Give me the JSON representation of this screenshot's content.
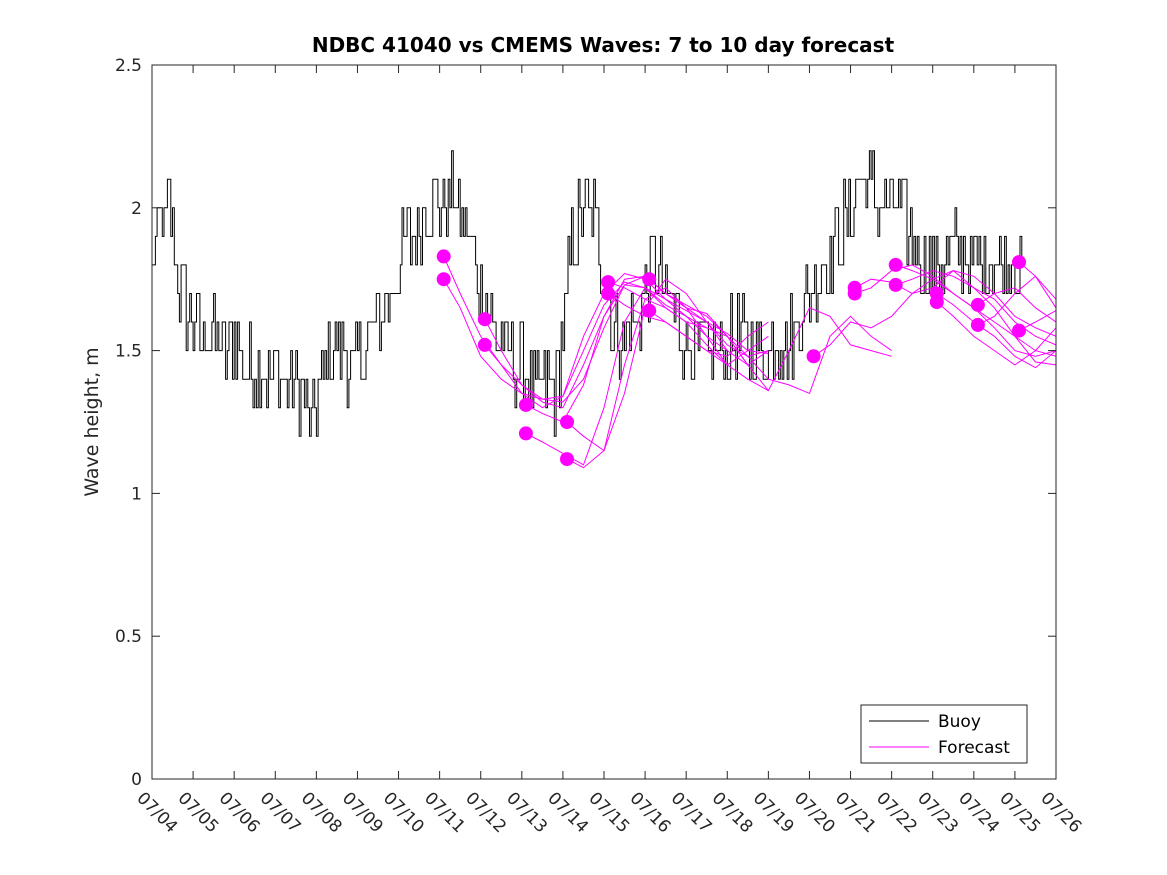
{
  "chart_data": {
    "type": "line",
    "title": "NDBC 41040 vs CMEMS Waves: 7 to 10 day forecast",
    "xlabel": "",
    "ylabel": "Wave height, m",
    "xlim": [
      "07/04",
      "07/26"
    ],
    "ylim": [
      0,
      2.5
    ],
    "x_ticks": [
      "07/04",
      "07/05",
      "07/06",
      "07/07",
      "07/08",
      "07/09",
      "07/10",
      "07/11",
      "07/12",
      "07/13",
      "07/14",
      "07/15",
      "07/16",
      "07/17",
      "07/18",
      "07/19",
      "07/20",
      "07/21",
      "07/22",
      "07/23",
      "07/24",
      "07/25",
      "07/26"
    ],
    "y_ticks": [
      "0",
      "0.5",
      "1",
      "1.5",
      "2",
      "2.5"
    ],
    "y_tick_values": [
      0,
      0.5,
      1,
      1.5,
      2,
      2.5
    ],
    "grid": false,
    "legend_position": "bottom-right",
    "colors": {
      "buoy": "#000000",
      "forecast": "#ff00ff"
    },
    "series": [
      {
        "name": "Buoy",
        "x_days": [
          0,
          0.05,
          0.1,
          0.2,
          0.3,
          0.4,
          0.5,
          0.6,
          0.8,
          1.0,
          1.2,
          1.5,
          1.8,
          2.0,
          2.2,
          2.5,
          2.8,
          3.0,
          3.2,
          3.5,
          3.7,
          3.8,
          3.9,
          4.0,
          4.2,
          4.5,
          4.8,
          5.0,
          5.3,
          5.5,
          5.8,
          6.0,
          6.3,
          6.5,
          6.8,
          7.0,
          7.3,
          7.6,
          7.8,
          8.0,
          8.3,
          8.6,
          8.9,
          9.1,
          9.3,
          9.6,
          9.8,
          10.0,
          10.2,
          10.5,
          10.8,
          11.0,
          11.2,
          11.5,
          11.8,
          12.0,
          12.3,
          12.5,
          12.8,
          13.0,
          13.3,
          13.6,
          14.0,
          14.3,
          14.6,
          15.0,
          15.3,
          15.6,
          16.0,
          16.3,
          16.6,
          17.0,
          17.3,
          17.6,
          18.0,
          18.3,
          18.6,
          19.0,
          19.3,
          19.6,
          20.0,
          20.3,
          20.6,
          21.0,
          21.2
        ],
        "values": [
          1.8,
          1.9,
          1.85,
          2.0,
          1.9,
          2.05,
          1.9,
          1.75,
          1.65,
          1.6,
          1.55,
          1.55,
          1.5,
          1.55,
          1.45,
          1.45,
          1.4,
          1.45,
          1.4,
          1.4,
          1.3,
          1.25,
          1.2,
          1.3,
          1.45,
          1.55,
          1.45,
          1.45,
          1.55,
          1.6,
          1.7,
          1.8,
          1.9,
          1.95,
          2.05,
          2.0,
          2.05,
          1.95,
          1.85,
          1.7,
          1.6,
          1.5,
          1.45,
          1.4,
          1.35,
          1.4,
          1.35,
          1.55,
          1.85,
          2.0,
          1.95,
          1.75,
          1.6,
          1.55,
          1.6,
          1.75,
          1.8,
          1.7,
          1.6,
          1.55,
          1.5,
          1.5,
          1.5,
          1.55,
          1.5,
          1.5,
          1.55,
          1.55,
          1.7,
          1.8,
          1.85,
          2.0,
          2.1,
          2.05,
          2.0,
          1.95,
          1.85,
          1.8,
          1.8,
          1.85,
          1.8,
          1.8,
          1.8,
          1.8,
          1.75
        ]
      },
      {
        "name": "Forecast",
        "runs": [
          {
            "x_days": [
              7.1,
              7.5,
              8.0,
              8.5,
              9.0,
              9.5,
              10.0,
              10.5,
              11.0,
              11.5,
              12.0,
              12.5,
              13.0,
              13.5,
              14.0,
              14.5,
              15.0,
              15.5,
              16.0,
              16.5,
              17.0,
              17.5,
              18.0
            ],
            "values": [
              1.83,
              1.7,
              1.55,
              1.45,
              1.38,
              1.33,
              1.32,
              1.4,
              1.58,
              1.73,
              1.76,
              1.7,
              1.65,
              1.63,
              1.55,
              1.45,
              1.36,
              1.5,
              1.65,
              1.62,
              1.52,
              1.5,
              1.48
            ]
          },
          {
            "x_days": [
              7.1,
              7.5,
              8.0,
              8.5,
              9.0,
              9.5,
              10.0,
              10.5,
              11.0,
              11.5,
              12.0,
              12.5,
              13.0,
              13.5,
              14.0,
              14.5,
              15.0,
              15.5,
              16.0,
              16.5,
              17.0,
              17.5,
              18.0
            ],
            "values": [
              1.75,
              1.65,
              1.48,
              1.4,
              1.35,
              1.33,
              1.34,
              1.5,
              1.66,
              1.74,
              1.72,
              1.65,
              1.6,
              1.58,
              1.55,
              1.48,
              1.4,
              1.38,
              1.35,
              1.55,
              1.62,
              1.55,
              1.5
            ]
          },
          {
            "x_days": [
              8.1,
              8.5,
              9.0,
              9.5,
              10.0,
              10.5,
              11.0,
              11.5,
              12.0,
              12.5,
              13.0,
              13.5,
              14.0,
              14.5,
              15.0
            ],
            "values": [
              1.61,
              1.5,
              1.38,
              1.32,
              1.3,
              1.45,
              1.62,
              1.75,
              1.76,
              1.7,
              1.66,
              1.62,
              1.55,
              1.45,
              1.5
            ]
          },
          {
            "x_days": [
              8.1,
              8.5,
              9.0,
              9.5,
              10.0,
              10.5,
              11.0,
              11.5,
              12.0,
              12.5,
              13.0,
              13.5,
              14.0,
              14.5,
              15.0
            ],
            "values": [
              1.52,
              1.45,
              1.35,
              1.3,
              1.34,
              1.55,
              1.7,
              1.77,
              1.75,
              1.68,
              1.64,
              1.6,
              1.56,
              1.5,
              1.49
            ]
          },
          {
            "x_days": [
              9.1,
              9.5,
              10.0,
              10.5,
              11.0,
              11.5,
              12.0,
              12.5,
              13.0,
              13.5,
              14.0
            ],
            "values": [
              1.31,
              1.28,
              1.25,
              1.38,
              1.62,
              1.73,
              1.72,
              1.66,
              1.62,
              1.55,
              1.5
            ]
          },
          {
            "x_days": [
              9.1,
              9.5,
              10.0,
              10.5,
              11.0,
              11.5,
              12.0,
              12.5,
              13.0,
              13.5,
              14.0
            ],
            "values": [
              1.21,
              1.18,
              1.14,
              1.1,
              1.3,
              1.6,
              1.72,
              1.68,
              1.62,
              1.58,
              1.55
            ]
          },
          {
            "x_days": [
              10.1,
              10.5,
              11.0,
              11.5,
              12.0,
              12.5,
              13.0,
              13.5,
              14.0,
              14.5
            ],
            "values": [
              1.25,
              1.2,
              1.15,
              1.35,
              1.65,
              1.75,
              1.7,
              1.6,
              1.5,
              1.45
            ]
          },
          {
            "x_days": [
              10.1,
              10.5,
              11.0,
              11.5,
              12.0,
              12.5,
              13.0,
              13.5,
              14.0
            ],
            "values": [
              1.12,
              1.09,
              1.15,
              1.45,
              1.68,
              1.72,
              1.65,
              1.55,
              1.45
            ]
          },
          {
            "x_days": [
              11.1,
              11.5,
              12.0,
              12.5,
              13.0,
              13.5,
              14.0,
              14.5,
              15.0
            ],
            "values": [
              1.74,
              1.72,
              1.68,
              1.65,
              1.6,
              1.52,
              1.45,
              1.4,
              1.36
            ]
          },
          {
            "x_days": [
              11.1,
              11.5,
              12.0,
              12.5,
              13.0,
              13.5,
              14.0,
              14.5,
              15.0
            ],
            "values": [
              1.7,
              1.66,
              1.62,
              1.6,
              1.55,
              1.5,
              1.48,
              1.55,
              1.6
            ]
          },
          {
            "x_days": [
              12.1,
              12.5,
              13.0,
              13.5,
              14.0,
              14.5,
              15.0
            ],
            "values": [
              1.75,
              1.7,
              1.65,
              1.6,
              1.52,
              1.48,
              1.5
            ]
          },
          {
            "x_days": [
              12.1,
              12.5,
              13.0,
              13.5,
              14.0,
              14.5,
              15.0
            ],
            "values": [
              1.64,
              1.6,
              1.55,
              1.5,
              1.45,
              1.5,
              1.55
            ]
          },
          {
            "x_days": [
              16.1,
              16.5,
              17.0,
              17.5,
              18.0,
              18.5,
              19.0,
              19.5,
              20.0,
              20.5,
              21.0,
              21.5,
              22.0
            ],
            "values": [
              1.48,
              1.52,
              1.6,
              1.58,
              1.62,
              1.7,
              1.75,
              1.78,
              1.72,
              1.68,
              1.6,
              1.55,
              1.52
            ]
          },
          {
            "x_days": [
              17.1,
              17.5,
              18.0,
              18.5,
              19.0,
              19.5,
              20.0,
              20.5,
              21.0,
              21.5,
              22.0
            ],
            "values": [
              1.72,
              1.75,
              1.74,
              1.7,
              1.72,
              1.78,
              1.76,
              1.7,
              1.62,
              1.58,
              1.55
            ]
          },
          {
            "x_days": [
              17.1,
              17.5,
              18.0,
              18.5,
              19.0,
              19.5,
              20.0,
              20.5,
              21.0,
              21.5,
              22.0
            ],
            "values": [
              1.7,
              1.72,
              1.78,
              1.8,
              1.76,
              1.7,
              1.65,
              1.6,
              1.55,
              1.5,
              1.48
            ]
          },
          {
            "x_days": [
              18.1,
              18.5,
              19.0,
              19.5,
              20.0,
              20.5,
              21.0,
              21.5,
              22.0
            ],
            "values": [
              1.8,
              1.78,
              1.75,
              1.7,
              1.65,
              1.58,
              1.5,
              1.48,
              1.5
            ]
          },
          {
            "x_days": [
              18.1,
              18.5,
              19.0,
              19.5,
              20.0,
              20.5,
              21.0,
              21.5,
              22.0
            ],
            "values": [
              1.73,
              1.75,
              1.78,
              1.76,
              1.72,
              1.65,
              1.55,
              1.46,
              1.45
            ]
          },
          {
            "x_days": [
              19.1,
              19.5,
              20.0,
              20.5,
              21.0,
              21.5,
              22.0
            ],
            "values": [
              1.7,
              1.66,
              1.6,
              1.55,
              1.48,
              1.44,
              1.5
            ]
          },
          {
            "x_days": [
              19.1,
              19.5,
              20.0,
              20.5,
              21.0,
              21.5,
              22.0
            ],
            "values": [
              1.67,
              1.62,
              1.55,
              1.5,
              1.45,
              1.5,
              1.58
            ]
          },
          {
            "x_days": [
              20.1,
              20.5,
              21.0,
              21.5,
              22.0
            ],
            "values": [
              1.66,
              1.7,
              1.72,
              1.65,
              1.6
            ]
          },
          {
            "x_days": [
              20.1,
              20.5,
              21.0,
              21.5,
              22.0
            ],
            "values": [
              1.59,
              1.62,
              1.7,
              1.76,
              1.68
            ]
          },
          {
            "x_days": [
              21.1,
              21.5,
              22.0
            ],
            "values": [
              1.81,
              1.76,
              1.65
            ]
          },
          {
            "x_days": [
              21.1,
              21.5,
              22.0
            ],
            "values": [
              1.57,
              1.6,
              1.64
            ]
          }
        ],
        "markers": {
          "x_days": [
            7.1,
            7.1,
            8.1,
            8.1,
            9.1,
            9.1,
            10.1,
            10.1,
            11.1,
            11.1,
            12.1,
            12.1,
            16.1,
            17.1,
            17.1,
            18.1,
            18.1,
            19.1,
            19.1,
            20.1,
            20.1,
            21.1,
            21.1
          ],
          "values": [
            1.83,
            1.75,
            1.61,
            1.52,
            1.31,
            1.21,
            1.25,
            1.12,
            1.74,
            1.7,
            1.75,
            1.64,
            1.48,
            1.72,
            1.7,
            1.8,
            1.73,
            1.7,
            1.67,
            1.66,
            1.59,
            1.81,
            1.57
          ]
        }
      }
    ]
  }
}
